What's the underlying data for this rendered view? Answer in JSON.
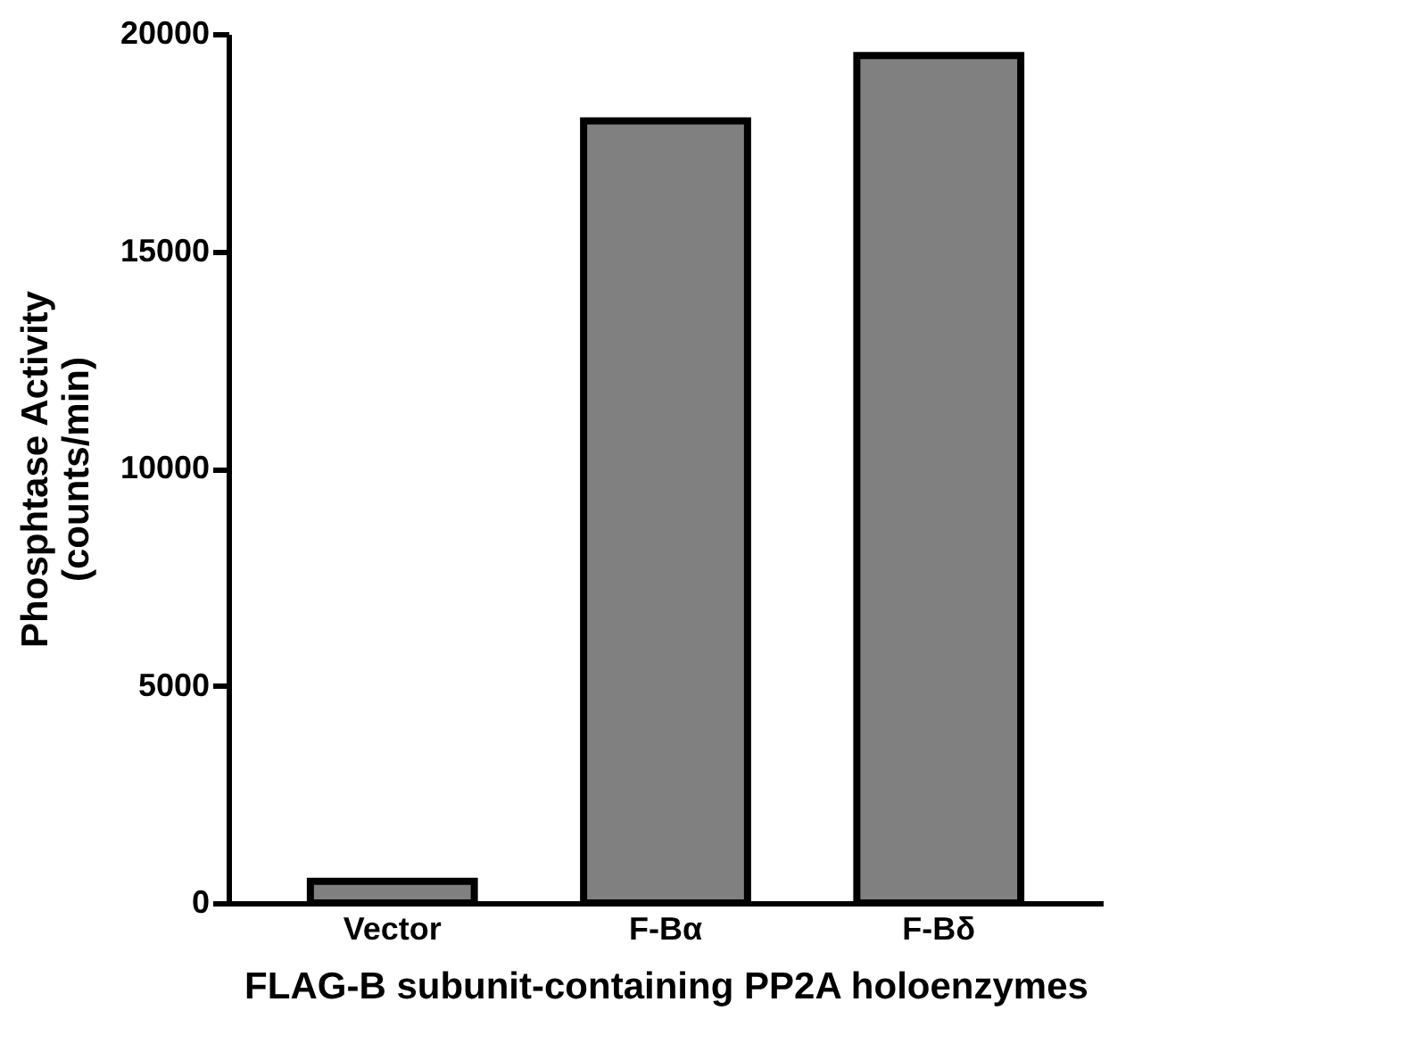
{
  "chart_data": {
    "type": "bar",
    "xlabel": "FLAG-B subunit-containing PP2A holoenzymes",
    "ylabel": "Phosphtase Activity\n(counts/min)",
    "categories": [
      "Vector",
      "F-Bα",
      "F-Bδ"
    ],
    "values": [
      500,
      18000,
      19500
    ],
    "color": "#808080",
    "ylim": [
      0,
      20000
    ],
    "yticks": [
      0,
      5000,
      10000,
      15000,
      20000
    ],
    "grid": false
  }
}
